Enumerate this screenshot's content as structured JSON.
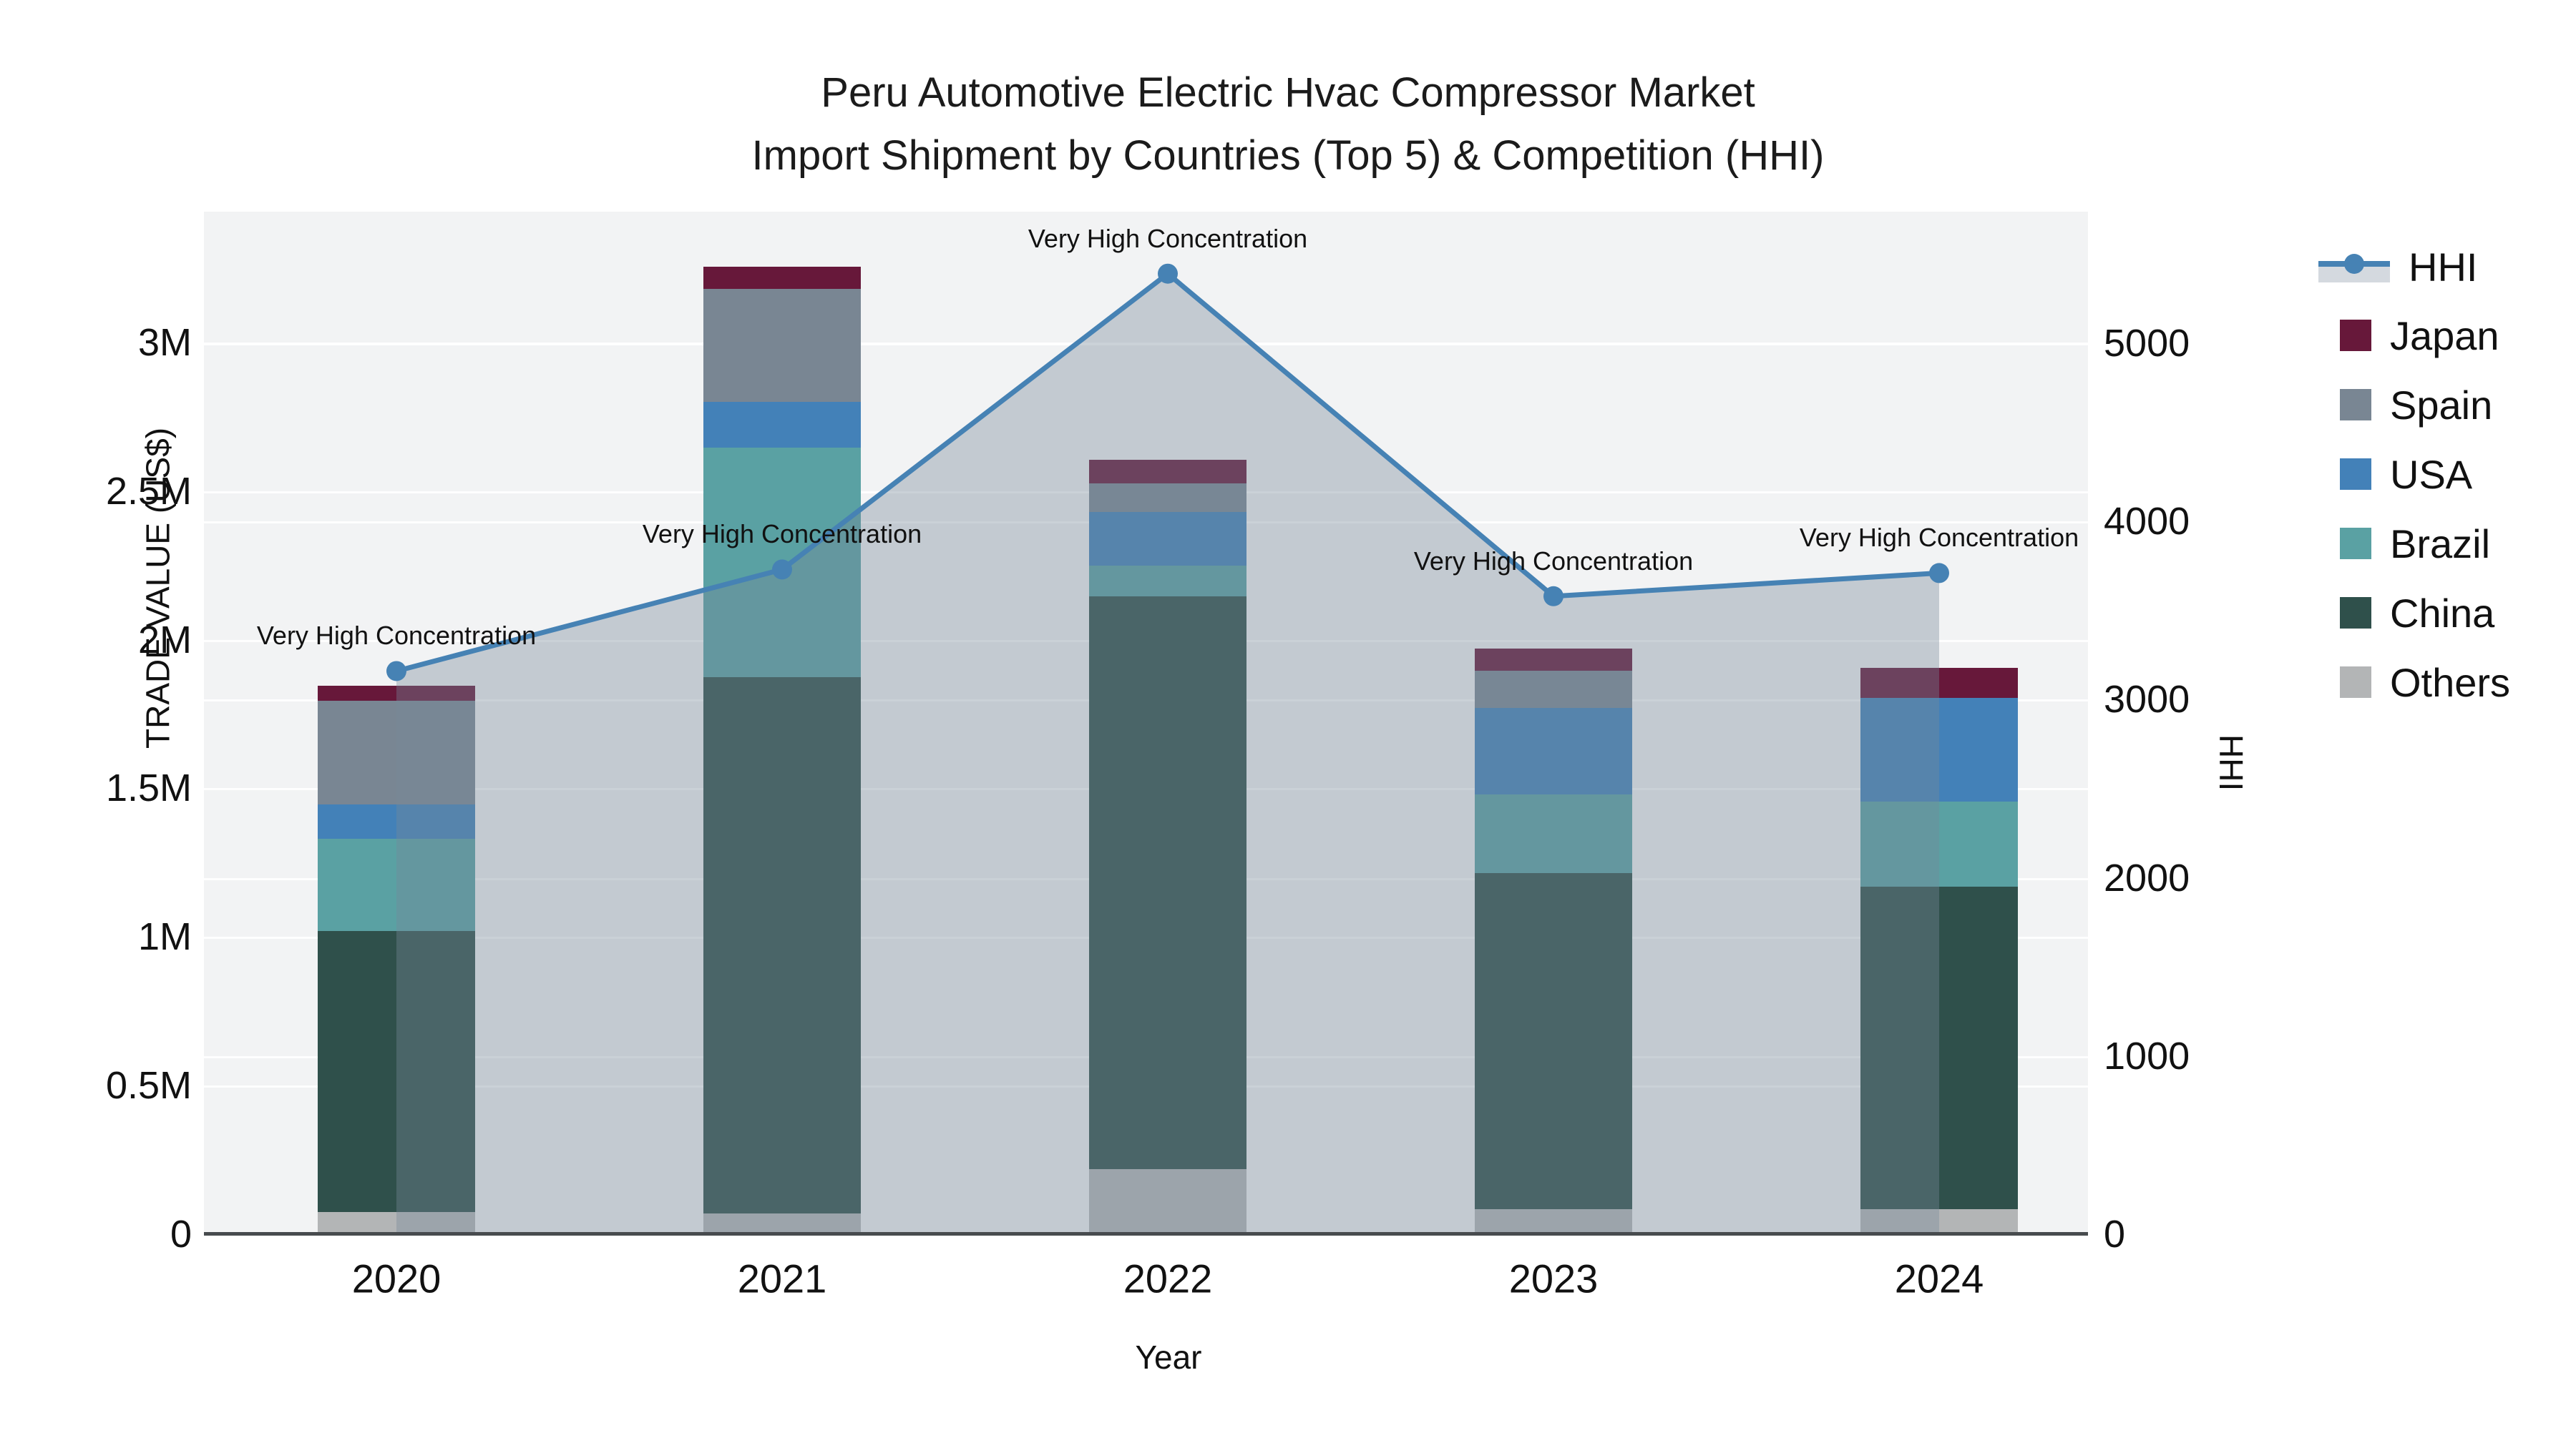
{
  "title": {
    "line1": "Peru Automotive Electric Hvac Compressor Market",
    "line2": "Import Shipment by Countries (Top 5) & Competition (HHI)"
  },
  "axes": {
    "x": {
      "title": "Year",
      "ticks": [
        "2020",
        "2021",
        "2022",
        "2023",
        "2024"
      ]
    },
    "y_left": {
      "title": "TRADE VALUE (US$)",
      "ticks": [
        {
          "label": "0",
          "value": 0
        },
        {
          "label": "0.5M",
          "value": 500000
        },
        {
          "label": "1M",
          "value": 1000000
        },
        {
          "label": "1.5M",
          "value": 1500000
        },
        {
          "label": "2M",
          "value": 2000000
        },
        {
          "label": "2.5M",
          "value": 2500000
        },
        {
          "label": "3M",
          "value": 3000000
        }
      ]
    },
    "y_right": {
      "title": "HHI",
      "ticks": [
        {
          "label": "0",
          "value": 0
        },
        {
          "label": "1000",
          "value": 1000
        },
        {
          "label": "2000",
          "value": 2000
        },
        {
          "label": "3000",
          "value": 3000
        },
        {
          "label": "4000",
          "value": 4000
        },
        {
          "label": "5000",
          "value": 5000
        }
      ]
    }
  },
  "legend": [
    {
      "label": "HHI",
      "type": "line",
      "color": "#4682b4"
    },
    {
      "label": "Japan",
      "type": "square",
      "color": "#67183a"
    },
    {
      "label": "Spain",
      "type": "square",
      "color": "#798693"
    },
    {
      "label": "USA",
      "type": "square",
      "color": "#4381b8"
    },
    {
      "label": "Brazil",
      "type": "square",
      "color": "#5aa1a3"
    },
    {
      "label": "China",
      "type": "square",
      "color": "#2f504b"
    },
    {
      "label": "Others",
      "type": "square",
      "color": "#b3b5b6"
    }
  ],
  "chart_data": {
    "type": "combo-stacked-bar-line",
    "title": "Peru Automotive Electric Hvac Compressor Market Import Shipment by Countries (Top 5) & Competition (HHI)",
    "xlabel": "Year",
    "ylabel_left": "TRADE VALUE (US$)",
    "ylabel_right": "HHI",
    "ylim_left": [
      0,
      3440000
    ],
    "ylim_right": [
      0,
      5738
    ],
    "grid": true,
    "legend_position": "right",
    "categories": [
      "2020",
      "2021",
      "2022",
      "2023",
      "2024"
    ],
    "bar_stack_order_bottom_to_top": [
      "Others",
      "China",
      "Brazil",
      "USA",
      "Spain",
      "Japan"
    ],
    "series": [
      {
        "name": "Others",
        "axis": "left",
        "color": "#b3b5b6",
        "values": [
          75000,
          70000,
          220000,
          85000,
          85000
        ]
      },
      {
        "name": "China",
        "axis": "left",
        "color": "#2f504b",
        "values": [
          945000,
          1805000,
          1925000,
          1130000,
          1085000
        ]
      },
      {
        "name": "Brazil",
        "axis": "left",
        "color": "#5aa1a3",
        "values": [
          310000,
          770000,
          105000,
          265000,
          285000
        ]
      },
      {
        "name": "USA",
        "axis": "left",
        "color": "#4381b8",
        "values": [
          115000,
          155000,
          180000,
          290000,
          350000
        ]
      },
      {
        "name": "Spain",
        "axis": "left",
        "color": "#798693",
        "values": [
          350000,
          380000,
          95000,
          125000,
          0
        ]
      },
      {
        "name": "Japan",
        "axis": "left",
        "color": "#67183a",
        "values": [
          50000,
          75000,
          80000,
          75000,
          100000
        ]
      }
    ],
    "line_series": {
      "name": "HHI",
      "axis": "right",
      "color": "#4682b4",
      "area_fill": "rgba(119,136,153,0.38)",
      "values": [
        3160,
        3730,
        5390,
        3580,
        3710
      ]
    },
    "annotations": [
      {
        "x": "2020",
        "text": "Very High Concentration"
      },
      {
        "x": "2021",
        "text": "Very High Concentration"
      },
      {
        "x": "2022",
        "text": "Very High Concentration"
      },
      {
        "x": "2023",
        "text": "Very High Concentration"
      },
      {
        "x": "2024",
        "text": "Very High Concentration"
      }
    ]
  }
}
